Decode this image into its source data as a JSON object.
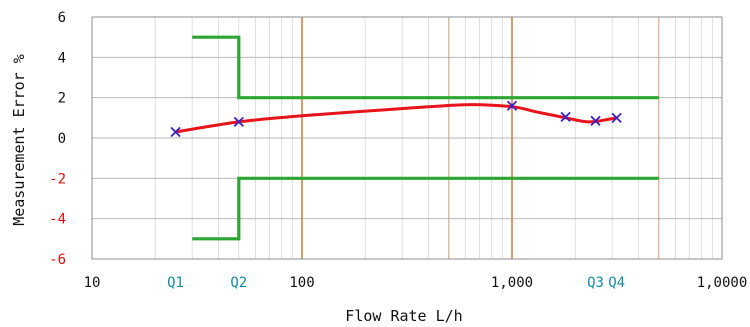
{
  "chart_data": {
    "type": "line",
    "xlabel": "Flow Rate L/h",
    "ylabel": "Measurement Error %",
    "x_scale": "log",
    "xlim": [
      10,
      10000
    ],
    "ylim": [
      -6,
      6
    ],
    "grid": true,
    "x_ticks": [
      {
        "value": 10,
        "label": "10"
      },
      {
        "value": 100,
        "label": "100"
      },
      {
        "value": 1000,
        "label": "1,000"
      },
      {
        "value": 10000,
        "label": "1,0000"
      }
    ],
    "y_ticks": [
      {
        "value": 6,
        "label": "6"
      },
      {
        "value": 4,
        "label": "4"
      },
      {
        "value": 2,
        "label": "2"
      },
      {
        "value": 0,
        "label": "0"
      },
      {
        "value": -2,
        "label": "-2"
      },
      {
        "value": -4,
        "label": "-4"
      },
      {
        "value": -6,
        "label": "-6"
      }
    ],
    "flow_markers": [
      {
        "label": "Q1",
        "x": 25
      },
      {
        "label": "Q2",
        "x": 50
      },
      {
        "label": "Q3",
        "x": 2500
      },
      {
        "label": "Q4",
        "x": 3150
      }
    ],
    "series": [
      {
        "type": "line-with-markers",
        "color": "#e8141b",
        "marker_color": "#3a22c8",
        "points": [
          {
            "x": 25,
            "y": 0.3
          },
          {
            "x": 50,
            "y": 0.8
          },
          {
            "x": 1000,
            "y": 1.6
          },
          {
            "x": 1800,
            "y": 1.05
          },
          {
            "x": 2500,
            "y": 0.85
          },
          {
            "x": 3150,
            "y": 1.0
          }
        ],
        "curve": [
          {
            "x": 25,
            "y": 0.3
          },
          {
            "x": 50,
            "y": 0.8
          },
          {
            "x": 100,
            "y": 1.1
          },
          {
            "x": 250,
            "y": 1.4
          },
          {
            "x": 600,
            "y": 1.65
          },
          {
            "x": 1000,
            "y": 1.55
          },
          {
            "x": 1300,
            "y": 1.3
          },
          {
            "x": 1800,
            "y": 1.0
          },
          {
            "x": 2200,
            "y": 0.82
          },
          {
            "x": 2500,
            "y": 0.82
          },
          {
            "x": 3150,
            "y": 1.0
          }
        ]
      },
      {
        "type": "limit",
        "color": "#2ca631",
        "points": [
          {
            "x": 30,
            "y": 5
          },
          {
            "x": 50,
            "y": 5
          },
          {
            "x": 50,
            "y": 2
          },
          {
            "x": 5000,
            "y": 2
          }
        ]
      },
      {
        "type": "limit",
        "color": "#2ca631",
        "points": [
          {
            "x": 30,
            "y": -5
          },
          {
            "x": 50,
            "y": -5
          },
          {
            "x": 50,
            "y": -2
          },
          {
            "x": 5000,
            "y": -2
          }
        ]
      }
    ],
    "colors": {
      "grid_major_x": "#c8732e",
      "grid_minor": "#dedede",
      "grid_y": "#b8b8b8",
      "tick_label": "#111111",
      "y_tick_negative": "#e01010",
      "q_label": "#1a8aa8"
    }
  }
}
